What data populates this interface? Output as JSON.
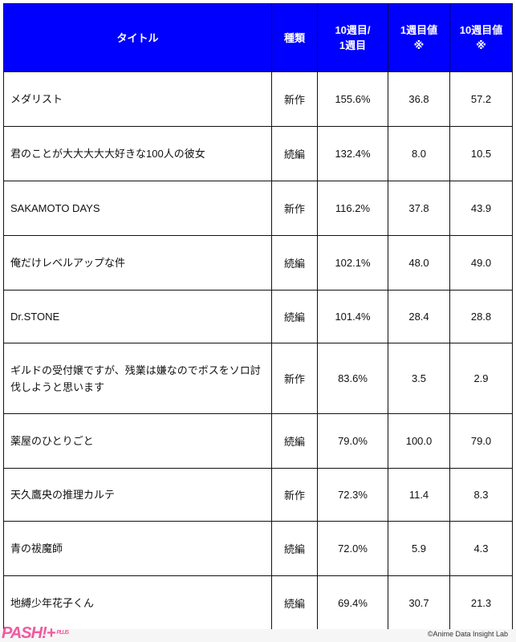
{
  "headers": [
    "タイトル",
    "種類",
    "10週目/\n1週目",
    "1週目値\n※",
    "10週目値\n※"
  ],
  "rows": [
    {
      "title": "メダリスト",
      "type": "新作",
      "ratio": "155.6%",
      "w1": "36.8",
      "w10": "57.2"
    },
    {
      "title": "君のことが大大大大大好きな100人の彼女",
      "type": "続編",
      "ratio": "132.4%",
      "w1": "8.0",
      "w10": "10.5"
    },
    {
      "title": "SAKAMOTO DAYS",
      "type": "新作",
      "ratio": "116.2%",
      "w1": "37.8",
      "w10": "43.9"
    },
    {
      "title": "俺だけレベルアップな件",
      "type": "続編",
      "ratio": "102.1%",
      "w1": "48.0",
      "w10": "49.0"
    },
    {
      "title": "Dr.STONE",
      "type": "続編",
      "ratio": "101.4%",
      "w1": "28.4",
      "w10": "28.8"
    },
    {
      "title": "ギルドの受付嬢ですが、残業は嫌なのでボスをソロ討伐しようと思います",
      "type": "新作",
      "ratio": "83.6%",
      "w1": "3.5",
      "w10": "2.9"
    },
    {
      "title": "薬屋のひとりごと",
      "type": "続編",
      "ratio": "79.0%",
      "w1": "100.0",
      "w10": "79.0"
    },
    {
      "title": "天久鷹央の推理カルテ",
      "type": "新作",
      "ratio": "72.3%",
      "w1": "11.4",
      "w10": "8.3"
    },
    {
      "title": "青の祓魔師",
      "type": "続編",
      "ratio": "72.0%",
      "w1": "5.9",
      "w10": "4.3"
    },
    {
      "title": "地縛少年花子くん",
      "type": "続編",
      "ratio": "69.4%",
      "w1": "30.7",
      "w10": "21.3"
    }
  ],
  "footer": {
    "logo": "PASH!+",
    "logo_sub": "PLUS",
    "copyright": "©Anime Data Insight Lab"
  },
  "colors": {
    "header_bg": "#0000ff",
    "logo": "#f05aa0"
  }
}
